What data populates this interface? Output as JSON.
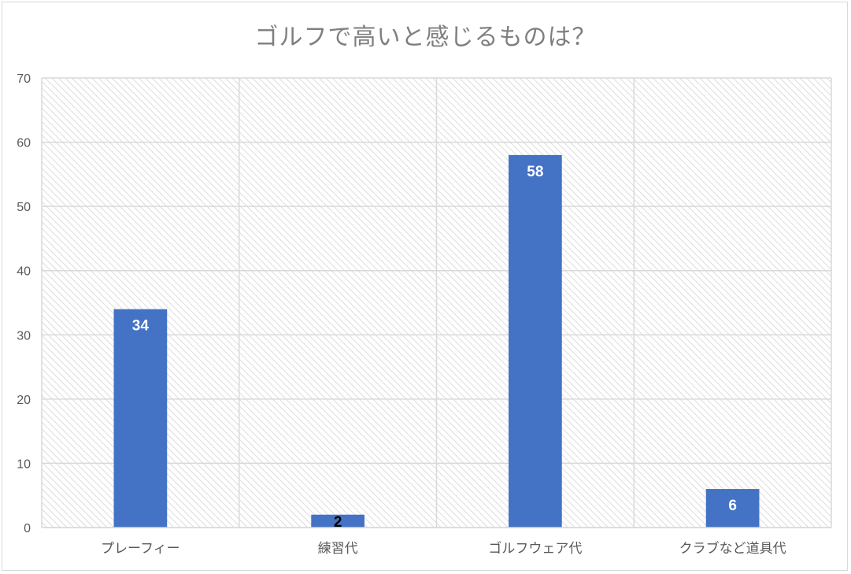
{
  "chart_data": {
    "type": "bar",
    "title": "ゴルフで高いと感じるものは？",
    "xlabel": "",
    "ylabel": "",
    "categories": [
      "プレーフィー",
      "練習代",
      "ゴルフウェア代",
      "クラブなど道具代"
    ],
    "values": [
      34,
      2,
      58,
      6
    ],
    "ylim": [
      0,
      70
    ],
    "yticks": [
      0,
      10,
      20,
      30,
      40,
      50,
      60,
      70
    ],
    "grid": true,
    "legend": "none",
    "data_labels": [
      "34",
      "2",
      "58",
      "6"
    ]
  },
  "colors": {
    "bar": "#4472c4",
    "grid": "#d9d9d9",
    "plot_hatch": "#dcdcdc",
    "title": "#7f7f7f",
    "axis_text": "#595959",
    "label_inside": "#ffffff",
    "label_outside": "#000000"
  }
}
